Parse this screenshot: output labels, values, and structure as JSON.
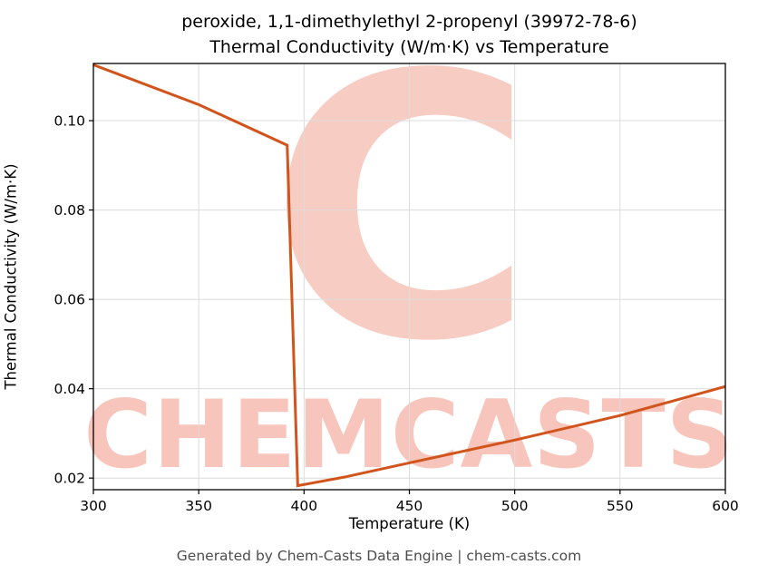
{
  "title": {
    "line1": "peroxide, 1,1-dimethylethyl 2-propenyl (39972-78-6)",
    "line2": "Thermal Conductivity (W/m·K) vs Temperature"
  },
  "footer": "Generated by Chem-Casts Data Engine | chem-casts.com",
  "watermark": {
    "letter": "C",
    "text": "CHEMCASTS",
    "color": "#e8593a"
  },
  "chart_data": {
    "type": "line",
    "title": "peroxide, 1,1-dimethylethyl 2-propenyl (39972-78-6) Thermal Conductivity (W/m·K) vs Temperature",
    "xlabel": "Temperature (K)",
    "ylabel": "Thermal Conductivity (W/m·K)",
    "xlim": [
      300,
      600
    ],
    "ylim": [
      0.0174,
      0.1128
    ],
    "xticks": [
      300,
      350,
      400,
      450,
      500,
      550,
      600
    ],
    "yticks": [
      0.02,
      0.04,
      0.06,
      0.08,
      0.1
    ],
    "grid": true,
    "legend": "none",
    "line_color": "#d1541c",
    "line_width": 3,
    "series": [
      {
        "name": "thermal_conductivity_W_per_mK",
        "x": [
          300,
          350,
          392,
          397,
          420,
          450,
          500,
          550,
          600
        ],
        "y": [
          0.1125,
          0.1036,
          0.0945,
          0.0183,
          0.0203,
          0.0234,
          0.0285,
          0.034,
          0.0405
        ]
      }
    ]
  }
}
